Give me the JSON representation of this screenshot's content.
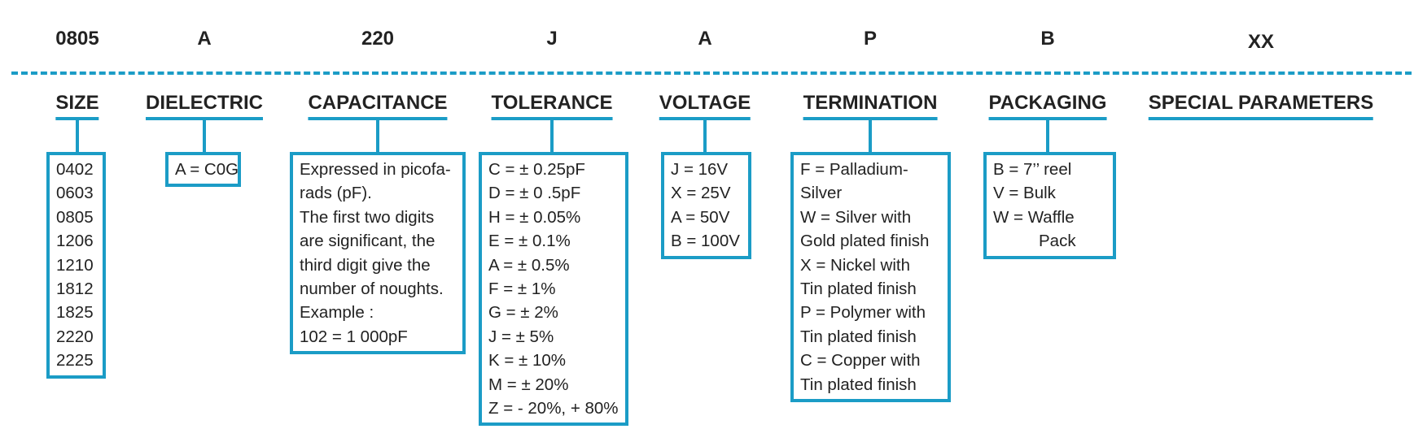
{
  "columns": [
    {
      "code": "0805",
      "label": "SIZE",
      "items": [
        "0402",
        "0603",
        "0805",
        "1206",
        "1210",
        "1812",
        "1825",
        "2220",
        "2225"
      ]
    },
    {
      "code": "A",
      "label": "DIELECTRIC",
      "items": [
        "A = C0G"
      ]
    },
    {
      "code": "220",
      "label": "CAPACITANCE",
      "items": [
        "Expressed in picofa-",
        "rads (pF).",
        "The first two digits",
        "are significant, the",
        "third digit give the",
        "number of noughts.",
        "Example :",
        "102 = 1 000pF"
      ]
    },
    {
      "code": "J",
      "label": "TOLERANCE",
      "items": [
        "C = ± 0.25pF",
        "D = ± 0 .5pF",
        "H = ± 0.05%",
        "E = ± 0.1%",
        "A = ± 0.5%",
        "F = ± 1%",
        "G = ± 2%",
        "J = ± 5%",
        "K = ± 10%",
        "M = ± 20%",
        "Z = - 20%, + 80%"
      ]
    },
    {
      "code": "A",
      "label": "VOLTAGE",
      "items": [
        "J = 16V",
        "X = 25V",
        "A = 50V",
        "B = 100V"
      ]
    },
    {
      "code": "P",
      "label": "TERMINATION",
      "items": [
        "F = Palladium-",
        "Silver",
        "W = Silver with",
        "Gold plated finish",
        "X = Nickel with",
        "Tin plated finish",
        "P = Polymer with",
        "Tin plated finish",
        "C = Copper with",
        "Tin plated finish"
      ]
    },
    {
      "code": "B",
      "label": "PACKAGING",
      "items": [
        "B = 7’’ reel",
        "V = Bulk",
        "W = Waffle",
        "Pack"
      ]
    },
    {
      "code": "XX",
      "label": "SPECIAL PARAMETERS",
      "items": []
    }
  ],
  "colors": {
    "accent": "#1b9cc6",
    "text": "#222222"
  }
}
